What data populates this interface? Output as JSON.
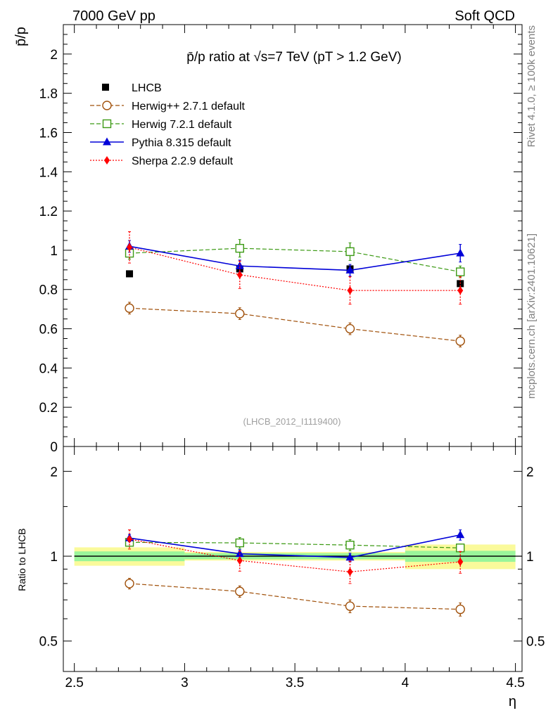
{
  "header": {
    "left": "7000 GeV pp",
    "right": "Soft QCD"
  },
  "side": {
    "rivet": "Rivet 4.1.0, ≥ 100k events",
    "mcplots": "mcplots.cern.ch [arXiv:2401.10621]"
  },
  "chart_data": [
    {
      "type": "scatter",
      "panel": "main",
      "title": "p̄/p ratio at √s=7 TeV (pT > 1.2 GeV)",
      "ylabel": "p̄/p",
      "xlabel": "",
      "analysis": "(LHCB_2012_I1119400)",
      "xlim": [
        2.45,
        4.53
      ],
      "ylim": [
        0,
        2.15
      ],
      "yticks": [
        0,
        0.2,
        0.4,
        0.6,
        0.8,
        1,
        1.2,
        1.4,
        1.6,
        1.8,
        2
      ],
      "ytick_labels": [
        "0",
        "0.2",
        "0.4",
        "0.6",
        "0.8",
        "1",
        "1.2",
        "1.4",
        "1.6",
        "1.8",
        "2"
      ],
      "x": [
        2.75,
        3.25,
        3.75,
        4.25
      ],
      "legend": "top-left",
      "series": [
        {
          "name": "LHCB",
          "values": [
            0.88,
            0.905,
            0.905,
            0.83
          ],
          "errors": [
            0.008,
            0.008,
            0.008,
            0.01
          ],
          "color": "#000000",
          "marker": "filled-square",
          "line": "none"
        },
        {
          "name": "Herwig++ 2.7.1 default",
          "values": [
            0.705,
            0.677,
            0.6,
            0.537
          ],
          "errors": [
            0.03,
            0.03,
            0.03,
            0.03
          ],
          "color": "#a0500a",
          "marker": "open-circle",
          "line": "dashed"
        },
        {
          "name": "Herwig 7.2.1 default",
          "values": [
            0.985,
            1.01,
            0.993,
            0.89
          ],
          "errors": [
            0.03,
            0.045,
            0.045,
            0.03
          ],
          "color": "#3c9a14",
          "marker": "open-square",
          "line": "dashed"
        },
        {
          "name": "Pythia 8.315 default",
          "values": [
            1.02,
            0.92,
            0.898,
            0.985
          ],
          "errors": [
            0.03,
            0.03,
            0.03,
            0.045
          ],
          "color": "#0000d8",
          "marker": "filled-triangle",
          "line": "solid"
        },
        {
          "name": "Sherpa 2.2.9 default",
          "values": [
            1.015,
            0.875,
            0.795,
            0.795
          ],
          "errors": [
            0.08,
            0.07,
            0.07,
            0.07
          ],
          "color": "#ff0000",
          "marker": "filled-diamond",
          "line": "dotted"
        }
      ]
    },
    {
      "type": "scatter",
      "panel": "ratio",
      "ylabel": "Ratio to LHCB",
      "xlabel": "η",
      "xlim": [
        2.45,
        4.53
      ],
      "ylim": [
        0.39,
        2.45
      ],
      "yscale": "log",
      "yticks": [
        0.5,
        1,
        2
      ],
      "ytick_labels": [
        "0.5",
        "1",
        "2"
      ],
      "xticks": [
        2.5,
        3,
        3.5,
        4,
        4.5
      ],
      "xtick_labels": [
        "2.5",
        "3",
        "3.5",
        "4",
        "4.5"
      ],
      "x": [
        2.75,
        3.25,
        3.75,
        4.25
      ],
      "reference_bands": {
        "bins": [
          [
            2.5,
            3.0
          ],
          [
            3.0,
            3.5
          ],
          [
            3.5,
            4.0
          ],
          [
            4.0,
            4.5
          ]
        ],
        "inner": [
          0.04,
          0.025,
          0.025,
          0.045
        ],
        "outer": [
          0.075,
          0.035,
          0.035,
          0.1
        ],
        "inner_color": "#9af59a",
        "outer_color": "#fafa9b"
      },
      "series": [
        {
          "name": "Herwig++ 2.7.1 default",
          "values": [
            0.8,
            0.75,
            0.665,
            0.648
          ],
          "errors": [
            0.035,
            0.035,
            0.035,
            0.035
          ]
        },
        {
          "name": "Herwig 7.2.1 default",
          "values": [
            1.12,
            1.115,
            1.095,
            1.07
          ],
          "errors": [
            0.035,
            0.05,
            0.05,
            0.035
          ]
        },
        {
          "name": "Pythia 8.315 default",
          "values": [
            1.16,
            1.02,
            0.99,
            1.19
          ],
          "errors": [
            0.035,
            0.035,
            0.035,
            0.05
          ]
        },
        {
          "name": "Sherpa 2.2.9 default",
          "values": [
            1.15,
            0.965,
            0.88,
            0.955
          ],
          "errors": [
            0.09,
            0.08,
            0.08,
            0.085
          ]
        }
      ]
    }
  ]
}
